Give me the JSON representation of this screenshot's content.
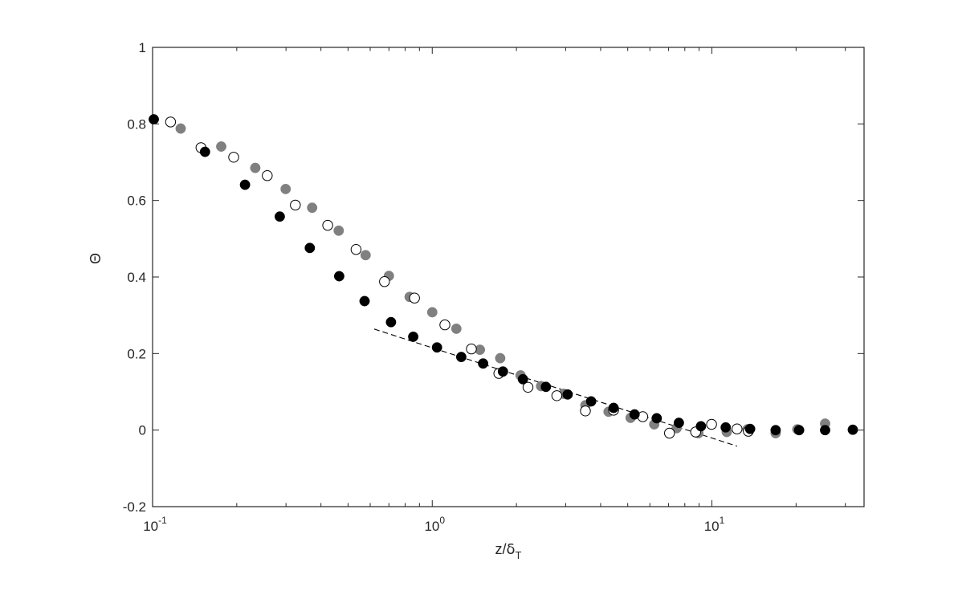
{
  "chart_data": {
    "type": "scatter",
    "title": "",
    "xlabel": {
      "main": "z/",
      "greek": "δ",
      "sub": "T"
    },
    "ylabel": "Θ",
    "xscale": "log",
    "xlim": [
      0.1,
      35
    ],
    "ylim": [
      -0.2,
      1
    ],
    "grid": false,
    "legend": "none",
    "x_ticks": [
      {
        "value": 0.1,
        "base": "10",
        "exp": "-1"
      },
      {
        "value": 1,
        "base": "10",
        "exp": "0"
      },
      {
        "value": 10,
        "base": "10",
        "exp": "1"
      }
    ],
    "y_ticks": [
      {
        "value": -0.2,
        "label": "-0.2"
      },
      {
        "value": 0,
        "label": "0"
      },
      {
        "value": 0.2,
        "label": "0.2"
      },
      {
        "value": 0.4,
        "label": "0.4"
      },
      {
        "value": 0.6,
        "label": "0.6"
      },
      {
        "value": 0.8,
        "label": "0.8"
      },
      {
        "value": 1,
        "label": "1"
      }
    ],
    "series": [
      {
        "marker": "filled-circle",
        "color": "#808080",
        "points": [
          [
            0.126,
            0.788
          ],
          [
            0.176,
            0.741
          ],
          [
            0.233,
            0.685
          ],
          [
            0.299,
            0.63
          ],
          [
            0.372,
            0.581
          ],
          [
            0.463,
            0.521
          ],
          [
            0.578,
            0.457
          ],
          [
            0.7,
            0.403
          ],
          [
            0.83,
            0.348
          ],
          [
            1.0,
            0.308
          ],
          [
            1.22,
            0.265
          ],
          [
            1.48,
            0.21
          ],
          [
            1.75,
            0.188
          ],
          [
            2.07,
            0.143
          ],
          [
            2.45,
            0.115
          ],
          [
            2.95,
            0.095
          ],
          [
            3.53,
            0.065
          ],
          [
            4.27,
            0.048
          ],
          [
            5.12,
            0.032
          ],
          [
            6.22,
            0.015
          ],
          [
            7.48,
            0.005
          ],
          [
            8.95,
            -0.008
          ],
          [
            11.3,
            -0.005
          ],
          [
            13.4,
            0.002
          ],
          [
            16.9,
            -0.008
          ],
          [
            20.2,
            0.002
          ],
          [
            25.4,
            0.017
          ]
        ]
      },
      {
        "marker": "open-circle",
        "color": "#000000",
        "points": [
          [
            0.116,
            0.805
          ],
          [
            0.149,
            0.738
          ],
          [
            0.195,
            0.713
          ],
          [
            0.257,
            0.665
          ],
          [
            0.324,
            0.588
          ],
          [
            0.423,
            0.535
          ],
          [
            0.534,
            0.472
          ],
          [
            0.675,
            0.388
          ],
          [
            0.864,
            0.345
          ],
          [
            1.11,
            0.275
          ],
          [
            1.38,
            0.212
          ],
          [
            1.73,
            0.148
          ],
          [
            2.2,
            0.112
          ],
          [
            2.79,
            0.09
          ],
          [
            3.53,
            0.05
          ],
          [
            4.45,
            0.052
          ],
          [
            5.66,
            0.035
          ],
          [
            7.05,
            -0.008
          ],
          [
            8.75,
            -0.005
          ],
          [
            9.97,
            0.015
          ],
          [
            12.3,
            0.003
          ],
          [
            13.5,
            -0.003
          ]
        ]
      },
      {
        "marker": "filled-circle",
        "color": "#000000",
        "points": [
          [
            0.101,
            0.812
          ],
          [
            0.154,
            0.727
          ],
          [
            0.214,
            0.641
          ],
          [
            0.285,
            0.558
          ],
          [
            0.365,
            0.476
          ],
          [
            0.465,
            0.402
          ],
          [
            0.573,
            0.337
          ],
          [
            0.712,
            0.282
          ],
          [
            0.855,
            0.244
          ],
          [
            1.04,
            0.216
          ],
          [
            1.27,
            0.191
          ],
          [
            1.52,
            0.174
          ],
          [
            1.79,
            0.153
          ],
          [
            2.11,
            0.133
          ],
          [
            2.55,
            0.113
          ],
          [
            3.05,
            0.093
          ],
          [
            3.7,
            0.075
          ],
          [
            4.45,
            0.058
          ],
          [
            5.29,
            0.041
          ],
          [
            6.35,
            0.031
          ],
          [
            7.62,
            0.019
          ],
          [
            9.14,
            0.01
          ],
          [
            11.2,
            0.007
          ],
          [
            13.7,
            0.003
          ],
          [
            16.9,
            0.0
          ],
          [
            20.5,
            0.0
          ],
          [
            25.4,
            0.0
          ],
          [
            31.9,
            0.001
          ]
        ]
      }
    ],
    "reference_line": {
      "style": "dashed",
      "color": "#000000",
      "points": [
        [
          0.62,
          0.264
        ],
        [
          12.3,
          -0.042
        ]
      ]
    }
  }
}
